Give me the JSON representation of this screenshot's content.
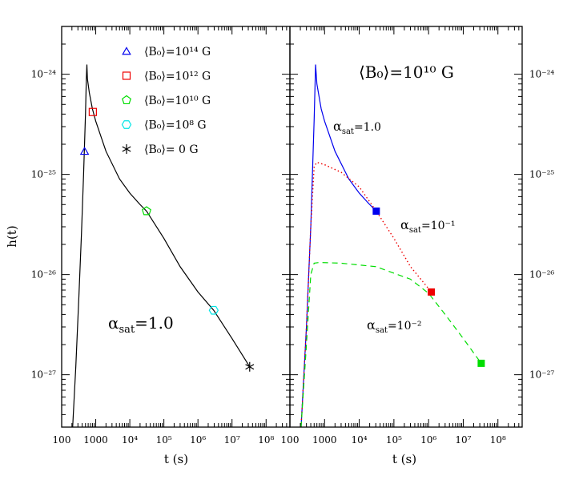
{
  "chart_data": [
    {
      "type": "line",
      "xlabel": "t  (s)",
      "ylabel": "h(t)",
      "xscale": "log",
      "yscale": "log",
      "xlim": [
        100,
        500000000
      ],
      "ylim": [
        3e-28,
        3e-24
      ],
      "x_ticks": [
        {
          "value": 100,
          "label": "100"
        },
        {
          "value": 1000,
          "label": "1000"
        },
        {
          "value": 10000,
          "label": "10⁴"
        },
        {
          "value": 100000,
          "label": "10⁵"
        },
        {
          "value": 1000000,
          "label": "10⁶"
        },
        {
          "value": 10000000,
          "label": "10⁷"
        },
        {
          "value": 100000000,
          "label": "10⁸"
        }
      ],
      "y_ticks": [
        {
          "value": 1e-27,
          "label": "10⁻²⁷"
        },
        {
          "value": 1e-26,
          "label": "10⁻²⁶"
        },
        {
          "value": 1e-25,
          "label": "10⁻²⁵"
        },
        {
          "value": 1e-24,
          "label": "10⁻²⁴"
        }
      ],
      "series": [
        {
          "color": "#000000",
          "style": "solid",
          "x": [
            210,
            260,
            320,
            380,
            440,
            500,
            530,
            550,
            570,
            650,
            800,
            1000,
            2000,
            5000,
            10000,
            20000,
            31000,
            100000,
            300000,
            1000000,
            2900000,
            10000000,
            33000000
          ],
          "y": [
            3e-28,
            1.2e-27,
            6e-27,
            2.5e-26,
            1e-25,
            4e-25,
            9e-25,
            1.25e-24,
            9e-25,
            6.5e-25,
            4.5e-25,
            3.4e-25,
            1.7e-25,
            9e-26,
            6.5e-26,
            5e-26,
            4.3e-26,
            2.3e-26,
            1.2e-26,
            6.7e-27,
            4.4e-27,
            2.3e-27,
            1.2e-27
          ]
        }
      ],
      "markers": [
        {
          "label": "⟨B₀⟩=10¹⁴ G",
          "symbol": "triangle",
          "color": "#0000ee",
          "x": 470,
          "y": 1.7e-25
        },
        {
          "label": "⟨B₀⟩=10¹² G",
          "symbol": "square",
          "color": "#ee0000",
          "x": 820,
          "y": 4.2e-25
        },
        {
          "label": "⟨B₀⟩=10¹⁰ G",
          "symbol": "pentagon",
          "color": "#00dd00",
          "x": 31000,
          "y": 4.3e-26
        },
        {
          "label": "⟨B₀⟩=10⁸ G",
          "symbol": "hexagon",
          "color": "#00e5e5",
          "x": 2900000,
          "y": 4.4e-27
        },
        {
          "label": "⟨B₀⟩=  0  G",
          "symbol": "asterisk",
          "color": "#000000",
          "x": 33000000,
          "y": 1.2e-27
        }
      ],
      "annotations": [
        {
          "text_base": "α",
          "text_sub": "sat",
          "text_tail": "=1.0"
        }
      ]
    },
    {
      "type": "line",
      "xlabel": "t  (s)",
      "xscale": "log",
      "yscale": "log",
      "xlim": [
        100,
        500000000
      ],
      "ylim": [
        3e-28,
        3e-24
      ],
      "x_ticks": [
        {
          "value": 100,
          "label": "100"
        },
        {
          "value": 1000,
          "label": "1000"
        },
        {
          "value": 10000,
          "label": "10⁴"
        },
        {
          "value": 100000,
          "label": "10⁵"
        },
        {
          "value": 1000000,
          "label": "10⁶"
        },
        {
          "value": 10000000,
          "label": "10⁷"
        },
        {
          "value": 100000000,
          "label": "10⁸"
        }
      ],
      "y_ticks": [
        {
          "value": 1e-27,
          "label": "10⁻²⁷"
        },
        {
          "value": 1e-26,
          "label": "10⁻²⁶"
        },
        {
          "value": 1e-25,
          "label": "10⁻²⁵"
        },
        {
          "value": 1e-24,
          "label": "10⁻²⁴"
        }
      ],
      "title": "⟨B₀⟩=10¹⁰  G",
      "series": [
        {
          "color": "#0000ee",
          "style": "solid",
          "x": [
            210,
            300,
            400,
            500,
            550,
            600,
            800,
            1000,
            2000,
            5000,
            10000,
            20000,
            31000
          ],
          "y": [
            3e-28,
            3e-27,
            3e-26,
            3.5e-25,
            1.25e-24,
            8e-25,
            4.5e-25,
            3.4e-25,
            1.7e-25,
            9e-26,
            6.5e-26,
            5e-26,
            4.3e-26
          ]
        },
        {
          "color": "#ee0000",
          "style": "dotted",
          "x": [
            210,
            300,
            400,
            500,
            600,
            1000,
            3000,
            10000,
            31000,
            100000,
            300000,
            1200000
          ],
          "y": [
            3e-28,
            3e-27,
            3e-26,
            1.2e-25,
            1.32e-25,
            1.25e-25,
            1.05e-25,
            7.5e-26,
            4.3e-26,
            2.3e-26,
            1.2e-26,
            6.7e-27
          ]
        },
        {
          "color": "#00dd00",
          "style": "dashed",
          "x": [
            210,
            300,
            400,
            500,
            700,
            3000,
            30000,
            300000,
            1000000,
            3000000,
            10000000,
            33000000
          ],
          "y": [
            3e-28,
            2e-27,
            1e-26,
            1.3e-26,
            1.32e-26,
            1.3e-26,
            1.2e-26,
            9e-27,
            6.5e-27,
            4e-27,
            2.3e-27,
            1.3e-27
          ]
        }
      ],
      "markers": [
        {
          "symbol": "filled-square",
          "color": "#0000ee",
          "x": 31000,
          "y": 4.3e-26
        },
        {
          "symbol": "filled-square",
          "color": "#ee0000",
          "x": 1200000,
          "y": 6.7e-27
        },
        {
          "symbol": "filled-square",
          "color": "#00dd00",
          "x": 33000000,
          "y": 1.3e-27
        }
      ],
      "annotations": [
        {
          "text_base": "α",
          "text_sub": "sat",
          "text_tail": "=1.0"
        },
        {
          "text_base": "α",
          "text_sub": "sat",
          "text_tail": "=10⁻¹"
        },
        {
          "text_base": "α",
          "text_sub": "sat",
          "text_tail": "=10⁻²"
        }
      ]
    }
  ]
}
